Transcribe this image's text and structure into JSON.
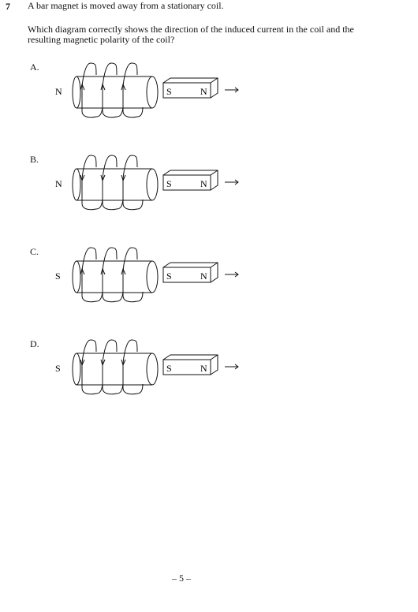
{
  "question": {
    "number": "7",
    "stem": "A bar magnet is moved away from a stationary coil.",
    "prompt": "Which diagram correctly shows the direction of the induced current in the coil and the resulting magnetic polarity of the coil?"
  },
  "options": [
    {
      "label": "A.",
      "coil_pole": "N",
      "magnet_left_pole": "S",
      "magnet_right_pole": "N",
      "current_arrows": "up"
    },
    {
      "label": "B.",
      "coil_pole": "N",
      "magnet_left_pole": "S",
      "magnet_right_pole": "N",
      "current_arrows": "down"
    },
    {
      "label": "C.",
      "coil_pole": "S",
      "magnet_left_pole": "S",
      "magnet_right_pole": "N",
      "current_arrows": "up"
    },
    {
      "label": "D.",
      "coil_pole": "S",
      "magnet_left_pole": "S",
      "magnet_right_pole": "N",
      "current_arrows": "down"
    }
  ],
  "footer": {
    "page": "– 5 –"
  }
}
